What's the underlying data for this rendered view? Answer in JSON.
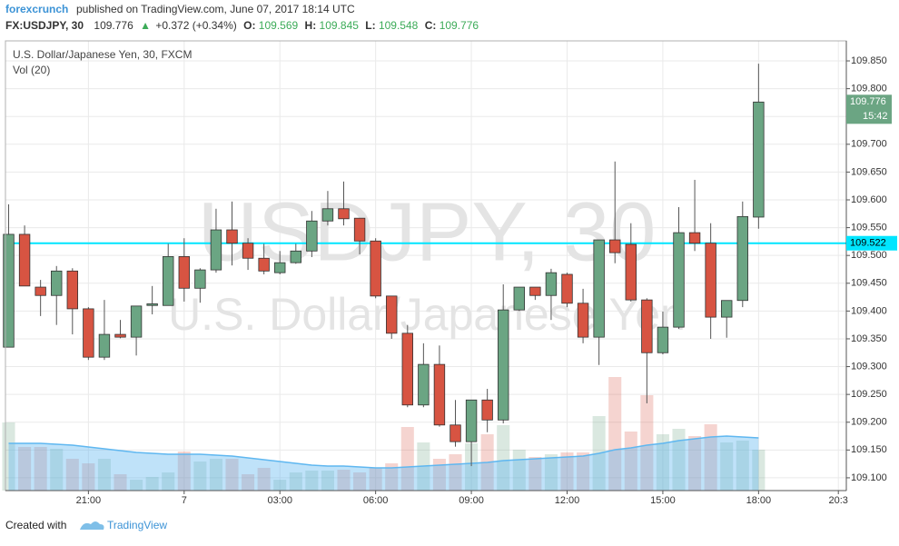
{
  "header": {
    "author": "forexcrunch",
    "published": "published on TradingView.com, June 07, 2017 18:14 UTC"
  },
  "quote": {
    "symbol": "FX:USDJPY, 30",
    "last": "109.776",
    "arrow": "▲",
    "change": "+0.372 (+0.34%)",
    "o_label": "O:",
    "o": "109.569",
    "h_label": "H:",
    "h": "109.845",
    "l_label": "L:",
    "l": "109.548",
    "c_label": "C:",
    "c": "109.776"
  },
  "footer": {
    "created": "Created with",
    "brand": "TradingView"
  },
  "chart_data": {
    "type": "candlestick",
    "title": "U.S. Dollar/Japanese Yen, 30, FXCM",
    "volume_label": "Vol (20)",
    "watermark": "USDJPY, 30",
    "watermark_sub": "U.S. Dollar/Japanese Yen",
    "up_color": "#6ba583",
    "down_color": "#d75442",
    "open": [
      109.335,
      109.538,
      109.443,
      109.428,
      109.472,
      109.404,
      109.317,
      109.358,
      109.353,
      109.41,
      109.41,
      109.498,
      109.441,
      109.474,
      109.546,
      109.522,
      109.495,
      109.469,
      109.487,
      109.508,
      109.562,
      109.584,
      109.567,
      109.526,
      109.427,
      109.36,
      109.231,
      109.304,
      109.195,
      109.165,
      109.24,
      109.204,
      109.402,
      109.443,
      109.428,
      109.466,
      109.414,
      109.353,
      109.528,
      109.52,
      109.42,
      109.325,
      109.371,
      109.541,
      109.522,
      109.389,
      109.419,
      109.569
    ],
    "high": [
      109.592,
      109.554,
      109.456,
      109.481,
      109.477,
      109.407,
      109.42,
      109.384,
      109.409,
      109.445,
      109.521,
      109.531,
      109.477,
      109.584,
      109.597,
      109.531,
      109.521,
      109.508,
      109.521,
      109.58,
      109.616,
      109.633,
      109.567,
      109.531,
      109.427,
      109.375,
      109.342,
      109.338,
      109.24,
      109.24,
      109.26,
      109.448,
      109.443,
      109.443,
      109.476,
      109.469,
      109.44,
      109.528,
      109.669,
      109.558,
      109.423,
      109.399,
      109.587,
      109.636,
      109.558,
      109.419,
      109.597,
      109.845
    ],
    "low": [
      109.335,
      109.445,
      109.391,
      109.375,
      109.358,
      109.312,
      109.312,
      109.351,
      109.32,
      109.394,
      109.41,
      109.417,
      109.415,
      109.469,
      109.482,
      109.474,
      109.466,
      109.466,
      109.485,
      109.497,
      109.554,
      109.554,
      109.502,
      109.423,
      109.35,
      109.227,
      109.227,
      109.192,
      109.156,
      109.121,
      109.182,
      109.198,
      109.4,
      109.42,
      109.384,
      109.407,
      109.342,
      109.303,
      109.486,
      109.417,
      109.234,
      109.322,
      109.368,
      109.508,
      109.35,
      109.352,
      109.407,
      109.548
    ],
    "close": [
      109.538,
      109.445,
      109.428,
      109.472,
      109.404,
      109.317,
      109.358,
      109.353,
      109.409,
      109.413,
      109.498,
      109.441,
      109.474,
      109.546,
      109.522,
      109.495,
      109.472,
      109.487,
      109.508,
      109.562,
      109.584,
      109.566,
      109.526,
      109.427,
      109.36,
      109.231,
      109.304,
      109.195,
      109.165,
      109.24,
      109.204,
      109.402,
      109.443,
      109.428,
      109.469,
      109.414,
      109.353,
      109.528,
      109.505,
      109.42,
      109.325,
      109.371,
      109.541,
      109.522,
      109.389,
      109.419,
      109.57,
      109.776
    ],
    "volume": [
      75,
      48,
      48,
      46,
      35,
      30,
      35,
      18,
      12,
      15,
      20,
      43,
      32,
      35,
      35,
      18,
      25,
      12,
      20,
      22,
      22,
      23,
      20,
      25,
      30,
      70,
      53,
      35,
      40,
      52,
      62,
      72,
      45,
      37,
      40,
      42,
      42,
      82,
      125,
      65,
      105,
      62,
      68,
      60,
      73,
      53,
      55,
      45
    ],
    "volume_ma": [
      52,
      52,
      52,
      51,
      50,
      48,
      46,
      44,
      42,
      41,
      40,
      40,
      40,
      39,
      38,
      36,
      34,
      32,
      30,
      28,
      27,
      27,
      26,
      25,
      25,
      26,
      27,
      28,
      29,
      30,
      31,
      33,
      34,
      35,
      36,
      37,
      38,
      41,
      45,
      47,
      50,
      52,
      55,
      57,
      59,
      60,
      59,
      58
    ],
    "volume_ma_color": "#5fb7f0",
    "xlim": [
      -0.2,
      52.5
    ],
    "xticks": [
      {
        "value": 5,
        "label": "21:00"
      },
      {
        "value": 11,
        "label": "7"
      },
      {
        "value": 17,
        "label": "03:00"
      },
      {
        "value": 23,
        "label": "06:00"
      },
      {
        "value": 29,
        "label": "09:00"
      },
      {
        "value": 35,
        "label": "12:00"
      },
      {
        "value": 41,
        "label": "15:00"
      },
      {
        "value": 47,
        "label": "18:00"
      },
      {
        "value": 52,
        "label": "20:3"
      }
    ],
    "ylim": [
      109.077,
      109.886
    ],
    "yticks": [
      {
        "value": 109.1,
        "label": "109.100"
      },
      {
        "value": 109.15,
        "label": "109.150"
      },
      {
        "value": 109.2,
        "label": "109.200"
      },
      {
        "value": 109.25,
        "label": "109.250"
      },
      {
        "value": 109.3,
        "label": "109.300"
      },
      {
        "value": 109.35,
        "label": "109.350"
      },
      {
        "value": 109.4,
        "label": "109.400"
      },
      {
        "value": 109.45,
        "label": "109.450"
      },
      {
        "value": 109.5,
        "label": "109.500"
      },
      {
        "value": 109.55,
        "label": "109.550"
      },
      {
        "value": 109.6,
        "label": "109.600"
      },
      {
        "value": 109.65,
        "label": "109.650"
      },
      {
        "value": 109.7,
        "label": "109.700"
      },
      {
        "value": 109.75,
        "label": "109.750"
      },
      {
        "value": 109.8,
        "label": "109.800"
      },
      {
        "value": 109.85,
        "label": "109.850"
      }
    ],
    "grid": true,
    "last_price": {
      "value": 109.776,
      "label": "109.776",
      "countdown": "15:42",
      "color": "#6ba583"
    },
    "hline": {
      "value": 109.522,
      "label": "109.522",
      "color": "#00e5ff"
    }
  }
}
